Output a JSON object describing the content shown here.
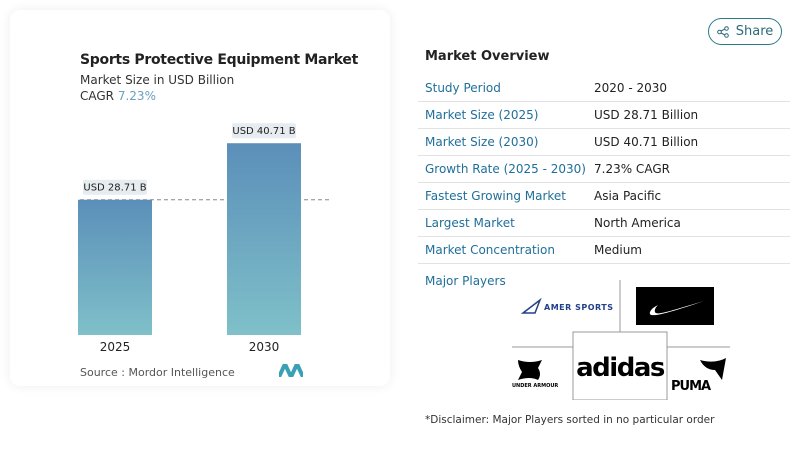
{
  "chart_card": {
    "title": "Sports Protective Equipment Market",
    "subtitle": "Market Size in USD Billion",
    "cagr_label": "CAGR",
    "cagr_value": "7.23%",
    "source": "Source :  Mordor Intelligence"
  },
  "chart_data": {
    "type": "bar",
    "categories": [
      "2025",
      "2030"
    ],
    "values": [
      28.71,
      40.71
    ],
    "data_labels": [
      "USD 28.71 B",
      "USD 40.71 B"
    ],
    "ylim": [
      0,
      45
    ],
    "title": "Sports Protective Equipment Market",
    "ylabel": "Market Size in USD Billion",
    "colors": {
      "top": "#5b8fb9",
      "bottom": "#7fc0c9"
    },
    "reference_line": 28.71
  },
  "share": {
    "label": "Share",
    "icon": "share-icon"
  },
  "overview": {
    "title": "Market Overview",
    "rows": [
      {
        "k": "Study Period",
        "v": "2020 - 2030"
      },
      {
        "k": "Market Size (2025)",
        "v": "USD 28.71 Billion"
      },
      {
        "k": "Market Size (2030)",
        "v": "USD 40.71 Billion"
      },
      {
        "k": "Growth Rate (2025 - 2030)",
        "v": "7.23% CAGR"
      },
      {
        "k": "Fastest Growing Market",
        "v": "Asia Pacific"
      },
      {
        "k": "Largest Market",
        "v": "North America"
      },
      {
        "k": "Market Concentration",
        "v": "Medium"
      }
    ],
    "major_players_label": "Major Players",
    "players": [
      "AMER SPORTS",
      "Nike",
      "adidas",
      "UNDER ARMOUR",
      "PUMA"
    ],
    "disclaimer": "*Disclaimer: Major Players sorted in no particular order"
  }
}
